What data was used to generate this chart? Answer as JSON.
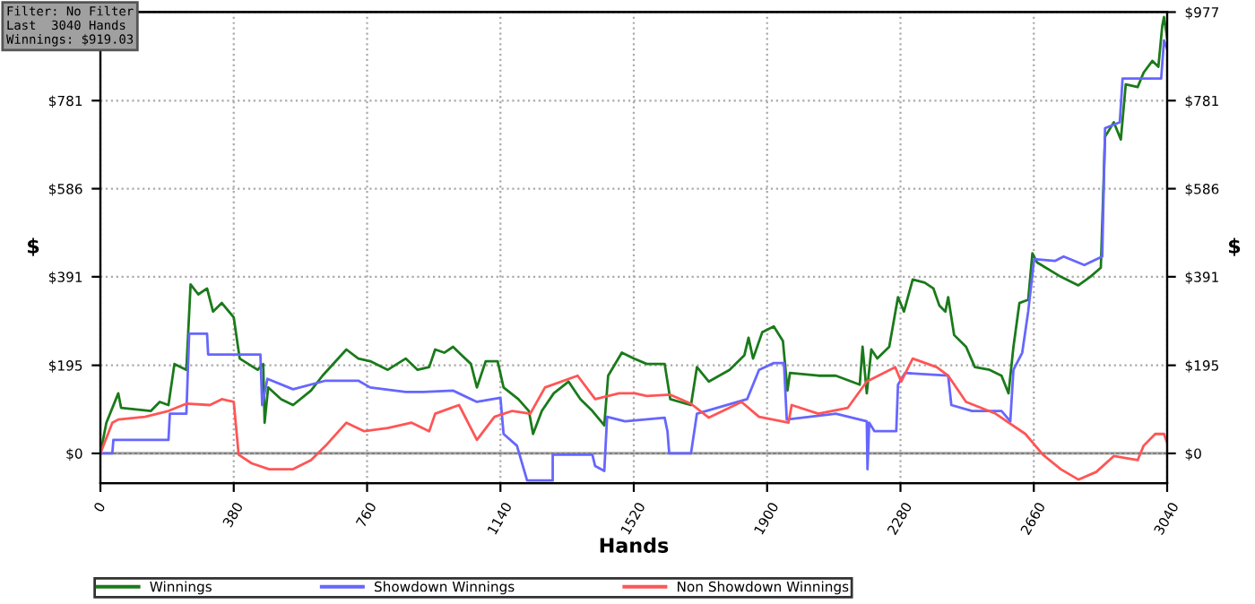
{
  "chart_data": {
    "type": "line",
    "xlabel": "Hands",
    "ylabel": "$",
    "y2label": "$",
    "annotations": [
      "Filter: No Filter\nLast  3040 Hands\nWinnings: $919.03"
    ],
    "xlim": [
      0,
      3040
    ],
    "xticks": [
      0,
      380,
      760,
      1140,
      1520,
      1900,
      2280,
      2660,
      3040
    ],
    "ylim": [
      -66,
      977
    ],
    "yticks": [
      {
        "value": 0,
        "label": "$0"
      },
      {
        "value": 195,
        "label": "$195"
      },
      {
        "value": 391,
        "label": "$391"
      },
      {
        "value": 586,
        "label": "$586"
      },
      {
        "value": 781,
        "label": "$781"
      },
      {
        "value": 977,
        "label": null
      }
    ],
    "y2lim": [
      -66,
      977
    ],
    "y2ticks": [
      {
        "value": 0,
        "label": "$0"
      },
      {
        "value": 195,
        "label": "$195"
      },
      {
        "value": 391,
        "label": "$391"
      },
      {
        "value": 586,
        "label": "$586"
      },
      {
        "value": 781,
        "label": "$781"
      },
      {
        "value": 977,
        "label": "$977"
      }
    ],
    "grid": true,
    "legend": "bottom",
    "marker": "none",
    "line_style": "solid",
    "ref_lines": [
      {
        "axis": "y",
        "value": 0,
        "label": null,
        "color": "#808080"
      }
    ],
    "series": [
      {
        "name": "Winnings",
        "color": "#1a7a1a",
        "x": [
          0,
          17,
          51,
          59,
          144,
          169,
          194,
          211,
          245,
          257,
          279,
          304,
          321,
          346,
          380,
          397,
          448,
          464,
          468,
          478,
          515,
          549,
          600,
          633,
          701,
          735,
          769,
          819,
          870,
          904,
          937,
          954,
          980,
          1005,
          1022,
          1056,
          1073,
          1098,
          1132,
          1149,
          1191,
          1221,
          1233,
          1258,
          1292,
          1334,
          1368,
          1402,
          1436,
          1447,
          1486,
          1520,
          1557,
          1608,
          1624,
          1683,
          1700,
          1734,
          1793,
          1835,
          1847,
          1860,
          1886,
          1919,
          1945,
          1958,
          1965,
          2046,
          2096,
          2164,
          2172,
          2184,
          2197,
          2214,
          2248,
          2273,
          2290,
          2315,
          2349,
          2374,
          2391,
          2408,
          2416,
          2433,
          2467,
          2492,
          2534,
          2568,
          2588,
          2602,
          2619,
          2644,
          2656,
          2669,
          2737,
          2787,
          2821,
          2851,
          2863,
          2888,
          2908,
          2922,
          2956,
          2973,
          2998,
          3015,
          3026,
          3031,
          3040
        ],
        "values": [
          0,
          68,
          133,
          101,
          94,
          114,
          107,
          198,
          185,
          374,
          352,
          365,
          314,
          333,
          301,
          210,
          185,
          198,
          68,
          146,
          120,
          107,
          139,
          172,
          230,
          210,
          204,
          185,
          210,
          185,
          191,
          230,
          223,
          236,
          223,
          198,
          146,
          204,
          204,
          146,
          120,
          94,
          43,
          94,
          133,
          159,
          120,
          94,
          62,
          172,
          223,
          210,
          198,
          198,
          120,
          107,
          191,
          159,
          185,
          217,
          256,
          210,
          268,
          281,
          249,
          139,
          178,
          172,
          172,
          152,
          236,
          133,
          230,
          210,
          236,
          346,
          314,
          385,
          378,
          365,
          327,
          314,
          346,
          262,
          236,
          191,
          185,
          172,
          133,
          236,
          333,
          340,
          443,
          423,
          391,
          372,
          391,
          411,
          701,
          733,
          695,
          817,
          811,
          843,
          869,
          856,
          946,
          966,
          919
        ]
      },
      {
        "name": "Showdown Winnings",
        "color": "#6666ff",
        "x": [
          0,
          34,
          37,
          194,
          198,
          245,
          253,
          304,
          307,
          456,
          461,
          476,
          549,
          642,
          735,
          769,
          870,
          920,
          1005,
          1073,
          1140,
          1149,
          1187,
          1216,
          1289,
          1289,
          1402,
          1410,
          1436,
          1444,
          1495,
          1608,
          1616,
          1621,
          1683,
          1700,
          1843,
          1877,
          1919,
          1948,
          1956,
          2096,
          2184,
          2186,
          2191,
          2206,
          2268,
          2273,
          2293,
          2416,
          2425,
          2484,
          2568,
          2593,
          2602,
          2627,
          2644,
          2661,
          2720,
          2745,
          2804,
          2855,
          2863,
          2905,
          2913,
          3023,
          3031,
          3040
        ],
        "values": [
          0,
          0,
          30,
          30,
          88,
          88,
          265,
          265,
          219,
          219,
          107,
          165,
          142,
          161,
          161,
          146,
          136,
          136,
          139,
          114,
          123,
          43,
          17,
          -60,
          -60,
          -3,
          -3,
          -28,
          -39,
          81,
          71,
          79,
          49,
          0,
          0,
          88,
          120,
          185,
          200,
          200,
          75,
          88,
          71,
          -35,
          68,
          49,
          49,
          152,
          178,
          172,
          107,
          94,
          94,
          71,
          185,
          223,
          314,
          430,
          426,
          436,
          417,
          436,
          720,
          733,
          830,
          830,
          914,
          895
        ]
      },
      {
        "name": "Non Showdown Winnings",
        "color": "#ff5555",
        "x": [
          0,
          34,
          51,
          127,
          194,
          245,
          312,
          346,
          380,
          394,
          431,
          481,
          549,
          600,
          642,
          701,
          752,
          819,
          887,
          937,
          954,
          1022,
          1073,
          1123,
          1174,
          1225,
          1267,
          1360,
          1410,
          1478,
          1523,
          1557,
          1624,
          1683,
          1734,
          1827,
          1877,
          1961,
          1970,
          2046,
          2130,
          2184,
          2265,
          2282,
          2315,
          2383,
          2416,
          2467,
          2551,
          2636,
          2686,
          2737,
          2787,
          2838,
          2888,
          2956,
          2973,
          3006,
          3031,
          3040
        ],
        "values": [
          0,
          68,
          75,
          81,
          94,
          110,
          107,
          120,
          114,
          -3,
          -22,
          -35,
          -35,
          -15,
          17,
          68,
          49,
          56,
          68,
          49,
          88,
          107,
          30,
          81,
          94,
          88,
          146,
          172,
          120,
          133,
          133,
          127,
          130,
          110,
          79,
          114,
          81,
          68,
          107,
          88,
          101,
          159,
          191,
          159,
          210,
          191,
          172,
          114,
          88,
          43,
          -3,
          -35,
          -58,
          -41,
          -6,
          -15,
          17,
          43,
          43,
          23
        ]
      }
    ]
  }
}
